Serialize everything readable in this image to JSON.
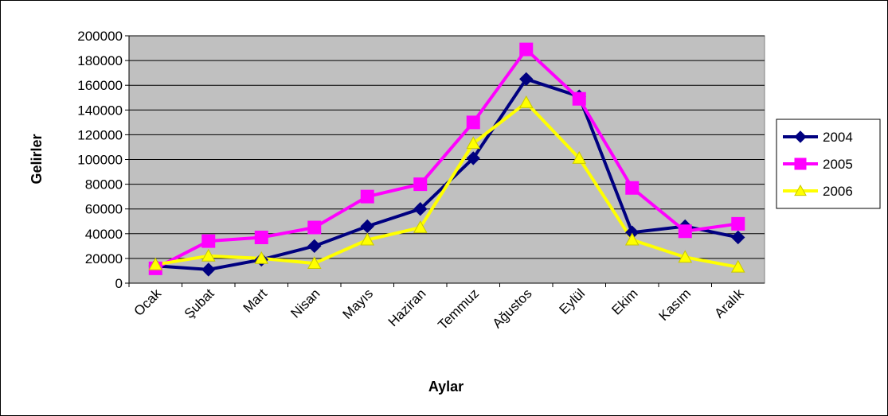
{
  "chart_data": {
    "type": "line",
    "x_label": "Aylar",
    "y_label": "Gelirler",
    "categories": [
      "Ocak",
      "Şubat",
      "Mart",
      "Nisan",
      "Mayıs",
      "Haziran",
      "Temmuz",
      "Ağustos",
      "Eylül",
      "Ekim",
      "Kasım",
      "Aralık"
    ],
    "series": [
      {
        "name": "2004",
        "color": "#000080",
        "marker": "diamond",
        "values": [
          14000,
          11000,
          19000,
          30000,
          46000,
          60000,
          101000,
          165000,
          151000,
          41000,
          46000,
          37000
        ]
      },
      {
        "name": "2005",
        "color": "#ff00ff",
        "marker": "square",
        "values": [
          12000,
          34000,
          37000,
          45000,
          70000,
          80000,
          130000,
          189000,
          149000,
          77000,
          42000,
          48000
        ]
      },
      {
        "name": "2006",
        "color": "#ffff00",
        "marker": "triangle",
        "values": [
          15000,
          22000,
          20000,
          16000,
          35000,
          45000,
          113000,
          146000,
          101000,
          35000,
          21000,
          13000
        ]
      }
    ],
    "ylim": [
      0,
      200000
    ],
    "yticks": [
      0,
      20000,
      40000,
      60000,
      80000,
      100000,
      120000,
      140000,
      160000,
      180000,
      200000
    ],
    "grid": true,
    "legend": "right",
    "plot_background": "#c0c0c0"
  }
}
